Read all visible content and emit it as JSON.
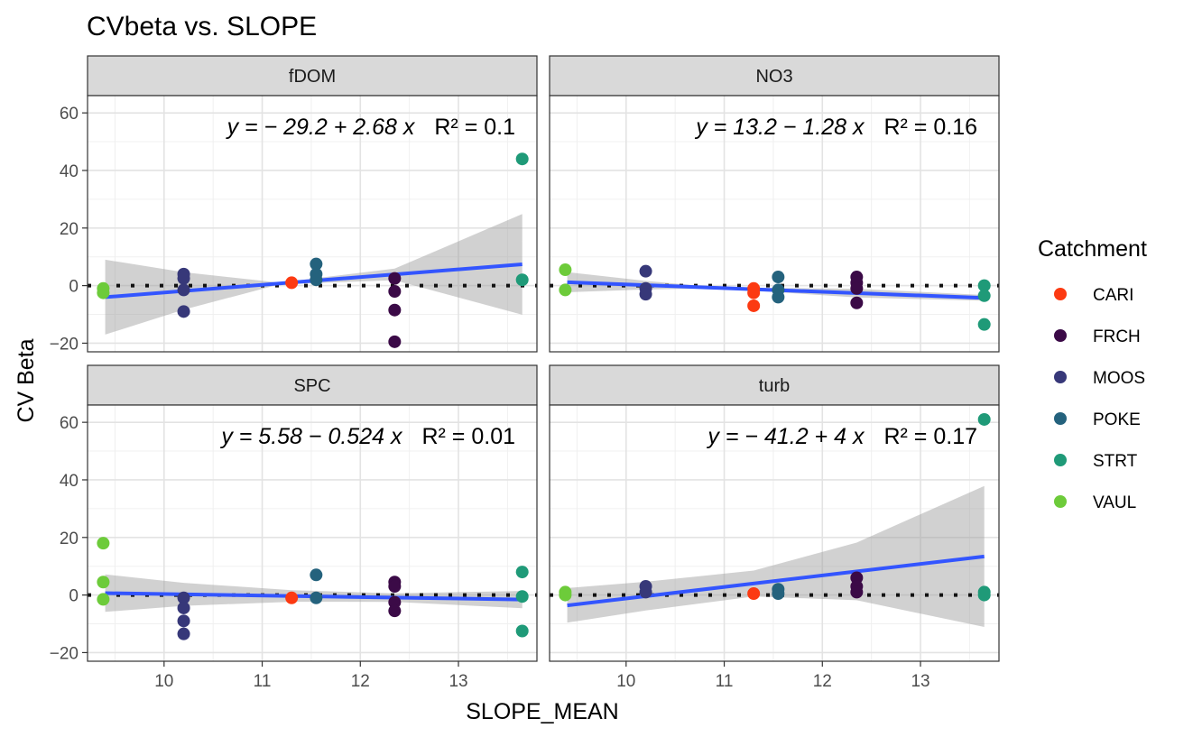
{
  "chart_data": {
    "type": "scatter",
    "title": "CVbeta vs. SLOPE",
    "xlabel": "SLOPE_MEAN",
    "ylabel": "CV Beta",
    "xlim": [
      9.22,
      13.8
    ],
    "ylim": [
      -23,
      66
    ],
    "x_ticks": [
      "10",
      "11",
      "12",
      "13"
    ],
    "y_ticks": [
      "-20",
      "0",
      "20",
      "40",
      "60"
    ],
    "legend": {
      "title": "Catchment",
      "position": "right",
      "entries": [
        {
          "name": "CARI",
          "color": "#FC3A12"
        },
        {
          "name": "FRCH",
          "color": "#3B0A47"
        },
        {
          "name": "MOOS",
          "color": "#373879"
        },
        {
          "name": "POKE",
          "color": "#24627D"
        },
        {
          "name": "STRT",
          "color": "#1F9A78"
        },
        {
          "name": "VAUL",
          "color": "#6DCB3A"
        }
      ]
    },
    "panels": [
      {
        "name": "fDOM",
        "equation": "y = − 29.2 + 2.68 x",
        "r2": "R² = 0.1",
        "fit": {
          "intercept": -29.2,
          "slope": 2.68
        },
        "ci": [
          [
            9.4,
            -13
          ],
          [
            10.2,
            -6.5
          ],
          [
            11.3,
            0.5
          ],
          [
            12.35,
            2
          ],
          [
            13.65,
            17.5
          ]
        ],
        "points": [
          {
            "c": "VAUL",
            "x": 9.38,
            "y": -1
          },
          {
            "c": "VAUL",
            "x": 9.38,
            "y": -2.5
          },
          {
            "c": "MOOS",
            "x": 10.2,
            "y": 4
          },
          {
            "c": "MOOS",
            "x": 10.2,
            "y": 2.5
          },
          {
            "c": "MOOS",
            "x": 10.2,
            "y": -1.5
          },
          {
            "c": "MOOS",
            "x": 10.2,
            "y": -9
          },
          {
            "c": "CARI",
            "x": 11.3,
            "y": 1
          },
          {
            "c": "POKE",
            "x": 11.55,
            "y": 7.5
          },
          {
            "c": "POKE",
            "x": 11.55,
            "y": 4
          },
          {
            "c": "POKE",
            "x": 11.55,
            "y": 2
          },
          {
            "c": "FRCH",
            "x": 12.35,
            "y": 2.5
          },
          {
            "c": "FRCH",
            "x": 12.35,
            "y": -2
          },
          {
            "c": "FRCH",
            "x": 12.35,
            "y": -8.5
          },
          {
            "c": "FRCH",
            "x": 12.35,
            "y": -19.5
          },
          {
            "c": "STRT",
            "x": 13.65,
            "y": 44
          },
          {
            "c": "STRT",
            "x": 13.65,
            "y": 2
          }
        ]
      },
      {
        "name": "NO3",
        "equation": "y = 13.2 − 1.28 x",
        "r2": "R² = 0.16",
        "fit": {
          "intercept": 13.2,
          "slope": -1.28
        },
        "ci": [
          [
            9.4,
            3.5
          ],
          [
            10.2,
            1.5
          ],
          [
            11.3,
            -0.5
          ],
          [
            12.35,
            -1.5
          ],
          [
            13.65,
            -1
          ]
        ],
        "points": [
          {
            "c": "VAUL",
            "x": 9.38,
            "y": 5.5
          },
          {
            "c": "VAUL",
            "x": 9.38,
            "y": -1.5
          },
          {
            "c": "MOOS",
            "x": 10.2,
            "y": 5
          },
          {
            "c": "MOOS",
            "x": 10.2,
            "y": -1
          },
          {
            "c": "MOOS",
            "x": 10.2,
            "y": -3
          },
          {
            "c": "CARI",
            "x": 11.3,
            "y": -1
          },
          {
            "c": "CARI",
            "x": 11.3,
            "y": -2.5
          },
          {
            "c": "CARI",
            "x": 11.3,
            "y": -7
          },
          {
            "c": "POKE",
            "x": 11.55,
            "y": 3
          },
          {
            "c": "POKE",
            "x": 11.55,
            "y": -1.5
          },
          {
            "c": "POKE",
            "x": 11.55,
            "y": -4
          },
          {
            "c": "FRCH",
            "x": 12.35,
            "y": 3
          },
          {
            "c": "FRCH",
            "x": 12.35,
            "y": 1
          },
          {
            "c": "FRCH",
            "x": 12.35,
            "y": -1
          },
          {
            "c": "FRCH",
            "x": 12.35,
            "y": -6
          },
          {
            "c": "STRT",
            "x": 13.65,
            "y": 0
          },
          {
            "c": "STRT",
            "x": 13.65,
            "y": -3.5
          },
          {
            "c": "STRT",
            "x": 13.65,
            "y": -13.5
          }
        ]
      },
      {
        "name": "SPC",
        "equation": "y = 5.58 − 0.524 x",
        "r2": "R² = 0.01",
        "fit": {
          "intercept": 5.58,
          "slope": -0.524
        },
        "ci": [
          [
            9.4,
            6.5
          ],
          [
            10.2,
            4
          ],
          [
            11.3,
            2
          ],
          [
            12.35,
            1.5
          ],
          [
            13.65,
            3
          ]
        ],
        "points": [
          {
            "c": "VAUL",
            "x": 9.38,
            "y": 18
          },
          {
            "c": "VAUL",
            "x": 9.38,
            "y": 4.5
          },
          {
            "c": "VAUL",
            "x": 9.38,
            "y": -1.5
          },
          {
            "c": "MOOS",
            "x": 10.2,
            "y": -1
          },
          {
            "c": "MOOS",
            "x": 10.2,
            "y": -4.5
          },
          {
            "c": "MOOS",
            "x": 10.2,
            "y": -9
          },
          {
            "c": "MOOS",
            "x": 10.2,
            "y": -13.5
          },
          {
            "c": "CARI",
            "x": 11.3,
            "y": -1
          },
          {
            "c": "POKE",
            "x": 11.55,
            "y": 7
          },
          {
            "c": "POKE",
            "x": 11.55,
            "y": -1
          },
          {
            "c": "FRCH",
            "x": 12.35,
            "y": 4.5
          },
          {
            "c": "FRCH",
            "x": 12.35,
            "y": 3
          },
          {
            "c": "FRCH",
            "x": 12.35,
            "y": -2.5
          },
          {
            "c": "FRCH",
            "x": 12.35,
            "y": -5.5
          },
          {
            "c": "STRT",
            "x": 13.65,
            "y": 8
          },
          {
            "c": "STRT",
            "x": 13.65,
            "y": -0.5
          },
          {
            "c": "STRT",
            "x": 13.65,
            "y": -12.5
          }
        ]
      },
      {
        "name": "turb",
        "equation": "y = − 41.2 + 4 x",
        "r2": "R² = 0.17",
        "fit": {
          "intercept": -41.2,
          "slope": 4
        },
        "ci": [
          [
            9.4,
            6
          ],
          [
            10.2,
            5
          ],
          [
            11.3,
            4.5
          ],
          [
            12.35,
            10
          ],
          [
            13.65,
            24.5
          ]
        ],
        "points": [
          {
            "c": "VAUL",
            "x": 9.38,
            "y": 1
          },
          {
            "c": "VAUL",
            "x": 9.38,
            "y": 0
          },
          {
            "c": "MOOS",
            "x": 10.2,
            "y": 3
          },
          {
            "c": "MOOS",
            "x": 10.2,
            "y": 1
          },
          {
            "c": "CARI",
            "x": 11.3,
            "y": 0.5
          },
          {
            "c": "POKE",
            "x": 11.55,
            "y": 2
          },
          {
            "c": "POKE",
            "x": 11.55,
            "y": 0.5
          },
          {
            "c": "FRCH",
            "x": 12.35,
            "y": 6
          },
          {
            "c": "FRCH",
            "x": 12.35,
            "y": 3
          },
          {
            "c": "FRCH",
            "x": 12.35,
            "y": 1
          },
          {
            "c": "STRT",
            "x": 13.65,
            "y": 61
          },
          {
            "c": "STRT",
            "x": 13.65,
            "y": 1
          },
          {
            "c": "STRT",
            "x": 13.65,
            "y": 0
          }
        ]
      }
    ]
  }
}
